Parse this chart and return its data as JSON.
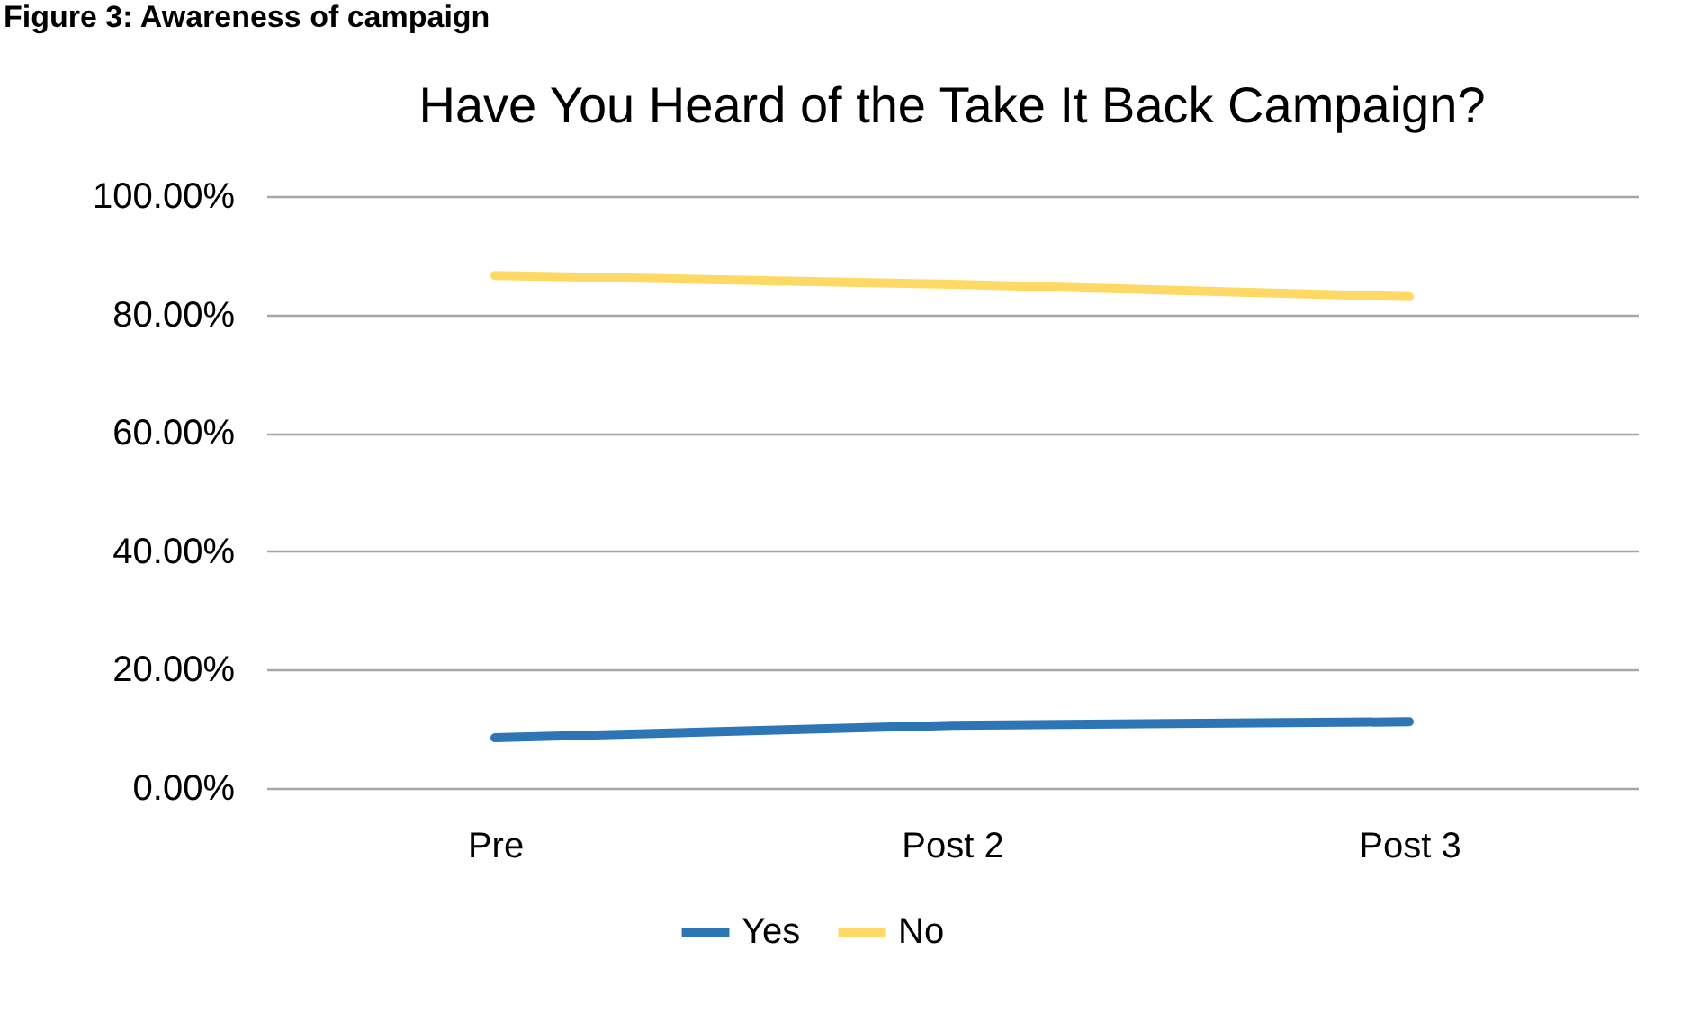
{
  "chart_data": {
    "type": "line",
    "title": "Have You Heard of the Take It Back Campaign?",
    "annotations": [
      "Figure 3: Awareness of campaign"
    ],
    "categories": [
      "Pre",
      "Post 2",
      "Post 3"
    ],
    "series": [
      {
        "name": "Yes",
        "color": "#2e75b6",
        "values": [
          8.5,
          10.6,
          11.2
        ]
      },
      {
        "name": "No",
        "color": "#ffd966",
        "values": [
          86.6,
          85.1,
          83.0
        ]
      }
    ],
    "ylim": [
      0,
      100
    ],
    "yticks": [
      {
        "value": 0,
        "label": "0.00%"
      },
      {
        "value": 20,
        "label": "20.00%"
      },
      {
        "value": 40,
        "label": "40.00%"
      },
      {
        "value": 60,
        "label": "60.00%"
      },
      {
        "value": 80,
        "label": "80.00%"
      },
      {
        "value": 100,
        "label": "100.00%"
      }
    ],
    "grid": "y",
    "legend": "bottom",
    "marker": "none",
    "line_style": "solid"
  }
}
